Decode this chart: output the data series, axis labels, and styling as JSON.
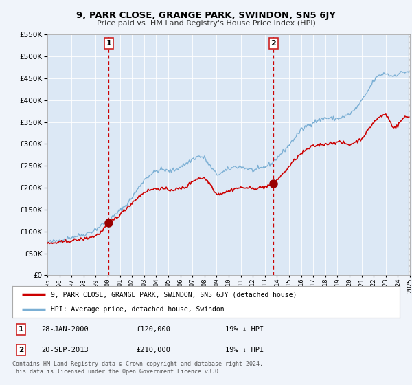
{
  "title": "9, PARR CLOSE, GRANGE PARK, SWINDON, SN5 6JY",
  "subtitle": "Price paid vs. HM Land Registry's House Price Index (HPI)",
  "bg_color": "#f0f4fa",
  "plot_bg_color": "#dce8f5",
  "grid_color": "#ffffff",
  "hpi_color": "#7bafd4",
  "price_color": "#cc0000",
  "sale1_date": 2000.07,
  "sale1_price": 120000,
  "sale2_date": 2013.72,
  "sale2_price": 210000,
  "legend_line1": "9, PARR CLOSE, GRANGE PARK, SWINDON, SN5 6JY (detached house)",
  "legend_line2": "HPI: Average price, detached house, Swindon",
  "note1_num": "1",
  "note1_date": "28-JAN-2000",
  "note1_price": "£120,000",
  "note1_hpi": "19% ↓ HPI",
  "note2_num": "2",
  "note2_date": "20-SEP-2013",
  "note2_price": "£210,000",
  "note2_hpi": "19% ↓ HPI",
  "footer": "Contains HM Land Registry data © Crown copyright and database right 2024.\nThis data is licensed under the Open Government Licence v3.0.",
  "xmin": 1995,
  "xmax": 2025,
  "ymin": 0,
  "ymax": 550000
}
